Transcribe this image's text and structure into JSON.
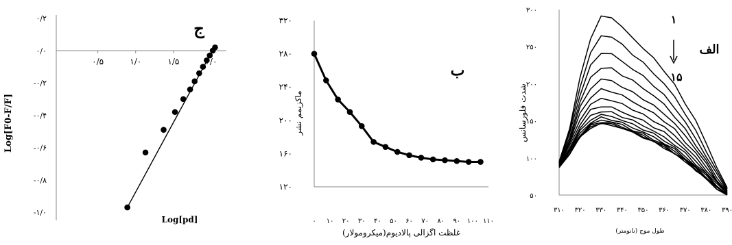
{
  "chart_data": [
    {
      "type": "scatter",
      "panel_letter": "ج",
      "xlabel": "Log[pd]",
      "ylabel": "Log[F0-F/F]",
      "xlim": [
        -0.05,
        2.2
      ],
      "ylim": [
        -1.05,
        0.22
      ],
      "x_ticks": [
        {
          "value": 0.5,
          "label": "۰/۵"
        },
        {
          "value": 1.0,
          "label": "۱/۰"
        },
        {
          "value": 1.5,
          "label": "۱/۵"
        },
        {
          "value": 2.0,
          "label": "۲/۰"
        }
      ],
      "y_ticks": [
        {
          "value": 0.2,
          "label": "۰/۲"
        },
        {
          "value": 0.0,
          "label": "۰/۰"
        },
        {
          "value": -0.2,
          "label": "-۰/۲"
        },
        {
          "value": -0.4,
          "label": "-۰/۴"
        },
        {
          "value": -0.6,
          "label": "-۰/۶"
        },
        {
          "value": -0.8,
          "label": "-۰/۸"
        },
        {
          "value": -1.0,
          "label": "-۱/۰"
        }
      ],
      "x": [
        0.89,
        1.13,
        1.37,
        1.52,
        1.63,
        1.72,
        1.78,
        1.84,
        1.89,
        1.94,
        1.98,
        2.02,
        2.05
      ],
      "y": [
        -0.97,
        -0.63,
        -0.49,
        -0.38,
        -0.3,
        -0.24,
        -0.19,
        -0.14,
        -0.1,
        -0.06,
        -0.03,
        0.0,
        0.02
      ],
      "fit_line": {
        "x": [
          0.89,
          2.05
        ],
        "y": [
          -0.97,
          0.03
        ]
      },
      "grid": false
    },
    {
      "type": "line",
      "panel_letter": "ب",
      "xlabel": "غلظت اگزالی پالادیوم(میکرومولار)",
      "ylabel": "ماکزیمم نشر",
      "xlim": [
        0,
        110
      ],
      "ylim": [
        120,
        320
      ],
      "x_ticks": [
        {
          "value": 0,
          "label": "۰"
        },
        {
          "value": 10,
          "label": "۱۰"
        },
        {
          "value": 20,
          "label": "۲۰"
        },
        {
          "value": 30,
          "label": "۳۰"
        },
        {
          "value": 40,
          "label": "۴۰"
        },
        {
          "value": 50,
          "label": "۵۰"
        },
        {
          "value": 60,
          "label": "۶۰"
        },
        {
          "value": 70,
          "label": "۷۰"
        },
        {
          "value": 80,
          "label": "۸۰"
        },
        {
          "value": 90,
          "label": "۹۰"
        },
        {
          "value": 100,
          "label": "۱۰۰"
        },
        {
          "value": 110,
          "label": "۱۱۰"
        }
      ],
      "y_ticks": [
        {
          "value": 120,
          "label": "۱۲۰"
        },
        {
          "value": 160,
          "label": "۱۶۰"
        },
        {
          "value": 200,
          "label": "۲۰۰"
        },
        {
          "value": 240,
          "label": "۲۴۰"
        },
        {
          "value": 280,
          "label": "۲۸۰"
        },
        {
          "value": 320,
          "label": "۳۲۰"
        }
      ],
      "x": [
        0,
        7.5,
        15,
        22.5,
        30,
        37.5,
        45,
        52.5,
        60,
        67.5,
        75,
        82.5,
        90,
        97.5,
        105
      ],
      "y": [
        280,
        248,
        225,
        210,
        193,
        174,
        168,
        162,
        158,
        155,
        153,
        152,
        151,
        150,
        150
      ],
      "grid": false
    },
    {
      "type": "line",
      "panel_letter": "الف",
      "series_first_label": "۱",
      "series_last_label": "۱۵",
      "xlabel": "طول موج (نانومتر)",
      "ylabel": "شدت فلورسانس",
      "xlim": [
        310,
        390
      ],
      "ylim": [
        50,
        300
      ],
      "x_ticks": [
        {
          "value": 310,
          "label": "۳۱۰"
        },
        {
          "value": 320,
          "label": "۳۲۰"
        },
        {
          "value": 330,
          "label": "۳۳۰"
        },
        {
          "value": 340,
          "label": "۳۴۰"
        },
        {
          "value": 350,
          "label": "۳۵۰"
        },
        {
          "value": 360,
          "label": "۳۶۰"
        },
        {
          "value": 370,
          "label": "۳۷۰"
        },
        {
          "value": 380,
          "label": "۳۸۰"
        },
        {
          "value": 390,
          "label": "۳۹۰"
        }
      ],
      "y_ticks": [
        {
          "value": 50,
          "label": "۵۰"
        },
        {
          "value": 100,
          "label": "۱۰۰"
        },
        {
          "value": 150,
          "label": "۱۵۰"
        },
        {
          "value": 200,
          "label": "۲۰۰"
        },
        {
          "value": 250,
          "label": "۲۵۰"
        },
        {
          "value": 300,
          "label": "۳۰۰"
        }
      ],
      "x": [
        310,
        315,
        320,
        325,
        330,
        335,
        340,
        345,
        350,
        355,
        360,
        365,
        370,
        375,
        380,
        385,
        390
      ],
      "series": [
        {
          "values": [
            95,
            140,
            208,
            262,
            290,
            290,
            276,
            262,
            248,
            234,
            218,
            198,
            174,
            150,
            120,
            88,
            60
          ]
        },
        {
          "values": [
            94,
            136,
            196,
            242,
            264,
            264,
            252,
            240,
            228,
            214,
            200,
            182,
            160,
            136,
            110,
            82,
            58
          ]
        },
        {
          "values": [
            93,
            132,
            186,
            224,
            242,
            240,
            230,
            220,
            210,
            198,
            184,
            168,
            148,
            126,
            102,
            78,
            56
          ]
        },
        {
          "values": [
            93,
            128,
            176,
            208,
            222,
            220,
            212,
            204,
            194,
            184,
            172,
            156,
            138,
            118,
            96,
            74,
            55
          ]
        },
        {
          "values": [
            92,
            125,
            168,
            194,
            206,
            204,
            196,
            188,
            180,
            170,
            160,
            146,
            130,
            112,
            92,
            71,
            54
          ]
        },
        {
          "values": [
            92,
            122,
            160,
            182,
            192,
            190,
            184,
            176,
            168,
            160,
            150,
            138,
            122,
            106,
            88,
            69,
            53
          ]
        },
        {
          "values": [
            91,
            119,
            152,
            172,
            180,
            178,
            172,
            166,
            158,
            150,
            142,
            130,
            116,
            100,
            84,
            67,
            52
          ]
        },
        {
          "values": [
            91,
            116,
            146,
            164,
            170,
            168,
            162,
            156,
            150,
            142,
            134,
            124,
            110,
            96,
            80,
            65,
            52
          ]
        },
        {
          "values": [
            90,
            114,
            140,
            157,
            163,
            161,
            156,
            150,
            144,
            136,
            128,
            118,
            106,
            92,
            78,
            63,
            51
          ]
        },
        {
          "values": [
            90,
            112,
            136,
            152,
            158,
            156,
            151,
            145,
            139,
            132,
            124,
            114,
            102,
            89,
            76,
            62,
            51
          ]
        },
        {
          "values": [
            89,
            110,
            133,
            148,
            154,
            152,
            147,
            141,
            135,
            128,
            120,
            111,
            100,
            87,
            74,
            61,
            50
          ]
        },
        {
          "values": [
            89,
            109,
            131,
            145,
            151,
            149,
            144,
            138,
            132,
            125,
            118,
            109,
            98,
            86,
            73,
            60,
            50
          ]
        },
        {
          "values": [
            88,
            108,
            129,
            143,
            149,
            147,
            142,
            136,
            130,
            123,
            116,
            107,
            97,
            85,
            72,
            60,
            50
          ]
        },
        {
          "values": [
            88,
            107,
            128,
            142,
            147,
            145,
            141,
            135,
            129,
            122,
            115,
            106,
            96,
            84,
            72,
            59,
            50
          ]
        },
        {
          "values": [
            87,
            106,
            127,
            141,
            146,
            144,
            140,
            134,
            128,
            121,
            114,
            105,
            95,
            84,
            71,
            59,
            50
          ]
        }
      ],
      "grid": false
    }
  ]
}
